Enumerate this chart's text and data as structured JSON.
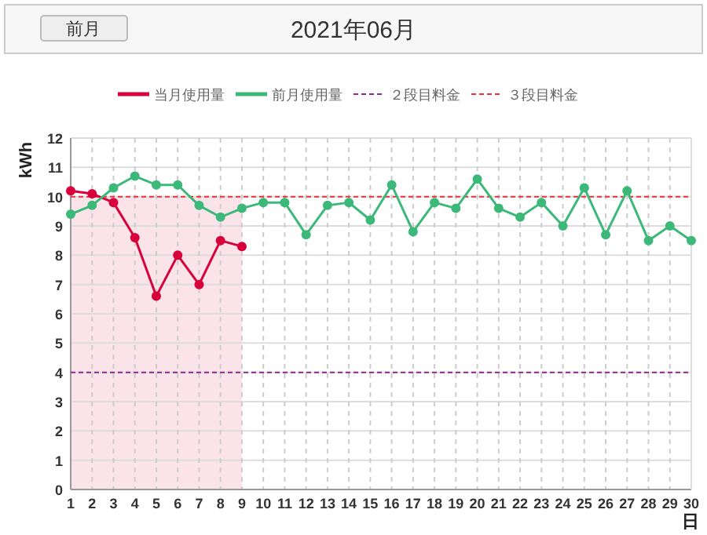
{
  "chart_data": {
    "type": "line",
    "title": "2021年06月",
    "annotations": [
      "前月"
    ],
    "xlabel": "日",
    "ylabel": "kWh",
    "x": [
      1,
      2,
      3,
      4,
      5,
      6,
      7,
      8,
      9,
      10,
      11,
      12,
      13,
      14,
      15,
      16,
      17,
      18,
      19,
      20,
      21,
      22,
      23,
      24,
      25,
      26,
      27,
      28,
      29,
      30
    ],
    "series": [
      {
        "name": "当月使用量",
        "color": "#d7003a",
        "values": [
          10.2,
          10.1,
          9.8,
          8.6,
          6.6,
          8.0,
          7.0,
          8.5,
          8.3,
          null,
          null,
          null,
          null,
          null,
          null,
          null,
          null,
          null,
          null,
          null,
          null,
          null,
          null,
          null,
          null,
          null,
          null,
          null,
          null,
          null
        ]
      },
      {
        "name": "前月使用量",
        "color": "#3cb878",
        "values": [
          9.4,
          9.7,
          10.3,
          10.7,
          10.4,
          10.4,
          9.7,
          9.3,
          9.6,
          9.8,
          9.8,
          8.7,
          9.7,
          9.8,
          9.2,
          10.4,
          8.8,
          9.8,
          9.6,
          10.6,
          9.6,
          9.3,
          9.8,
          9.0,
          10.3,
          8.7,
          10.2,
          8.5,
          9.0,
          8.5
        ]
      }
    ],
    "ref_lines": [
      {
        "axis": "y",
        "value": 4,
        "label": "２段目料金",
        "color": "#8b2a8b",
        "line_style": "dashed"
      },
      {
        "axis": "y",
        "value": 10,
        "label": "３段目料金",
        "color": "#e8333a",
        "line_style": "dashed"
      }
    ],
    "bands": [
      {
        "axis": "x",
        "from": 1,
        "to": 9,
        "color": "#fbe3ea"
      }
    ],
    "xlim": [
      1,
      30
    ],
    "xticks": [
      1,
      2,
      3,
      4,
      5,
      6,
      7,
      8,
      9,
      10,
      11,
      12,
      13,
      14,
      15,
      16,
      17,
      18,
      19,
      20,
      21,
      22,
      23,
      24,
      25,
      26,
      27,
      28,
      29,
      30
    ],
    "ylim": [
      0,
      12
    ],
    "yticks": [
      0,
      1,
      2,
      3,
      4,
      5,
      6,
      7,
      8,
      9,
      10,
      11,
      12
    ],
    "grid": true,
    "legend": "top",
    "marker": "circle",
    "line_style": "solid"
  }
}
